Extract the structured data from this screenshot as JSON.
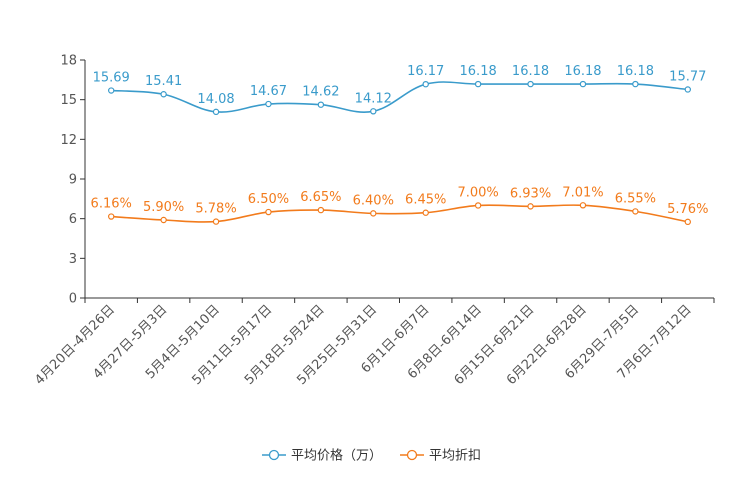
{
  "chart_data": {
    "type": "line",
    "title": "",
    "xlabel": "",
    "ylabel": "",
    "ylim": [
      0,
      18
    ],
    "yticks": [
      0,
      3,
      6,
      9,
      12,
      15,
      18
    ],
    "grid": false,
    "legend_position": "bottom",
    "categories": [
      "4月20日-4月26日",
      "4月27日-5月3日",
      "5月4日-5月10日",
      "5月11日-5月17日",
      "5月18日-5月24日",
      "5月25日-5月31日",
      "6月1日-6月7日",
      "6月8日-6月14日",
      "6月15日-6月21日",
      "6月22日-6月28日",
      "6月29日-7月5日",
      "7月6日-7月12日"
    ],
    "series": [
      {
        "name": "平均价格（万）",
        "color": "#3a9bcb",
        "values": [
          15.69,
          15.41,
          14.08,
          14.67,
          14.62,
          14.12,
          16.17,
          16.18,
          16.18,
          16.18,
          16.18,
          15.77
        ],
        "labels": [
          "15.69",
          "15.41",
          "14.08",
          "14.67",
          "14.62",
          "14.12",
          "16.17",
          "16.18",
          "16.18",
          "16.18",
          "16.18",
          "15.77"
        ]
      },
      {
        "name": "平均折扣",
        "color": "#f27b1c",
        "values": [
          6.16,
          5.9,
          5.78,
          6.5,
          6.65,
          6.4,
          6.45,
          7.0,
          6.93,
          7.01,
          6.55,
          5.76
        ],
        "labels": [
          "6.16%",
          "5.90%",
          "5.78%",
          "6.50%",
          "6.65%",
          "6.40%",
          "6.45%",
          "7.00%",
          "6.93%",
          "7.01%",
          "6.55%",
          "5.76%"
        ]
      }
    ]
  }
}
